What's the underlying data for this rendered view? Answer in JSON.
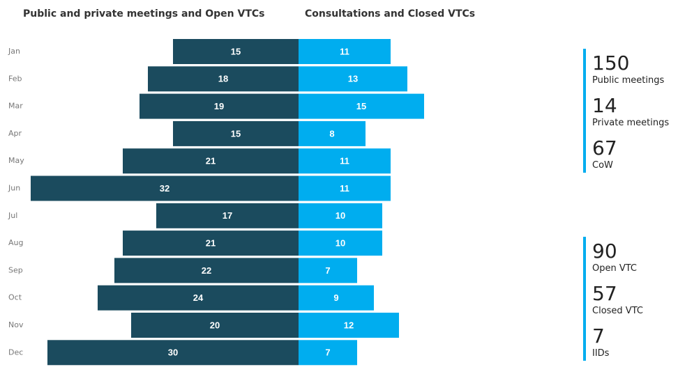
{
  "chart_data": {
    "type": "butterfly-bar",
    "categories": [
      "Jan",
      "Feb",
      "Mar",
      "Apr",
      "May",
      "Jun",
      "Jul",
      "Aug",
      "Sep",
      "Oct",
      "Nov",
      "Dec"
    ],
    "series": [
      {
        "name": "Public and private meetings and Open VTCs",
        "color": "#1b4b5e",
        "values": [
          15,
          18,
          19,
          15,
          21,
          32,
          17,
          21,
          22,
          24,
          20,
          30
        ]
      },
      {
        "name": "Consultations and Closed VTCs",
        "color": "#00adef",
        "values": [
          11,
          13,
          15,
          8,
          11,
          11,
          10,
          10,
          7,
          9,
          12,
          7
        ]
      }
    ]
  },
  "stats": [
    {
      "items": [
        {
          "value": 150,
          "label": "Public meetings"
        },
        {
          "value": 14,
          "label": "Private meetings"
        },
        {
          "value": 67,
          "label": "CoW"
        }
      ]
    },
    {
      "items": [
        {
          "value": 90,
          "label": "Open VTC"
        },
        {
          "value": 57,
          "label": "Closed VTC"
        },
        {
          "value": 7,
          "label": "IIDs"
        }
      ]
    }
  ]
}
